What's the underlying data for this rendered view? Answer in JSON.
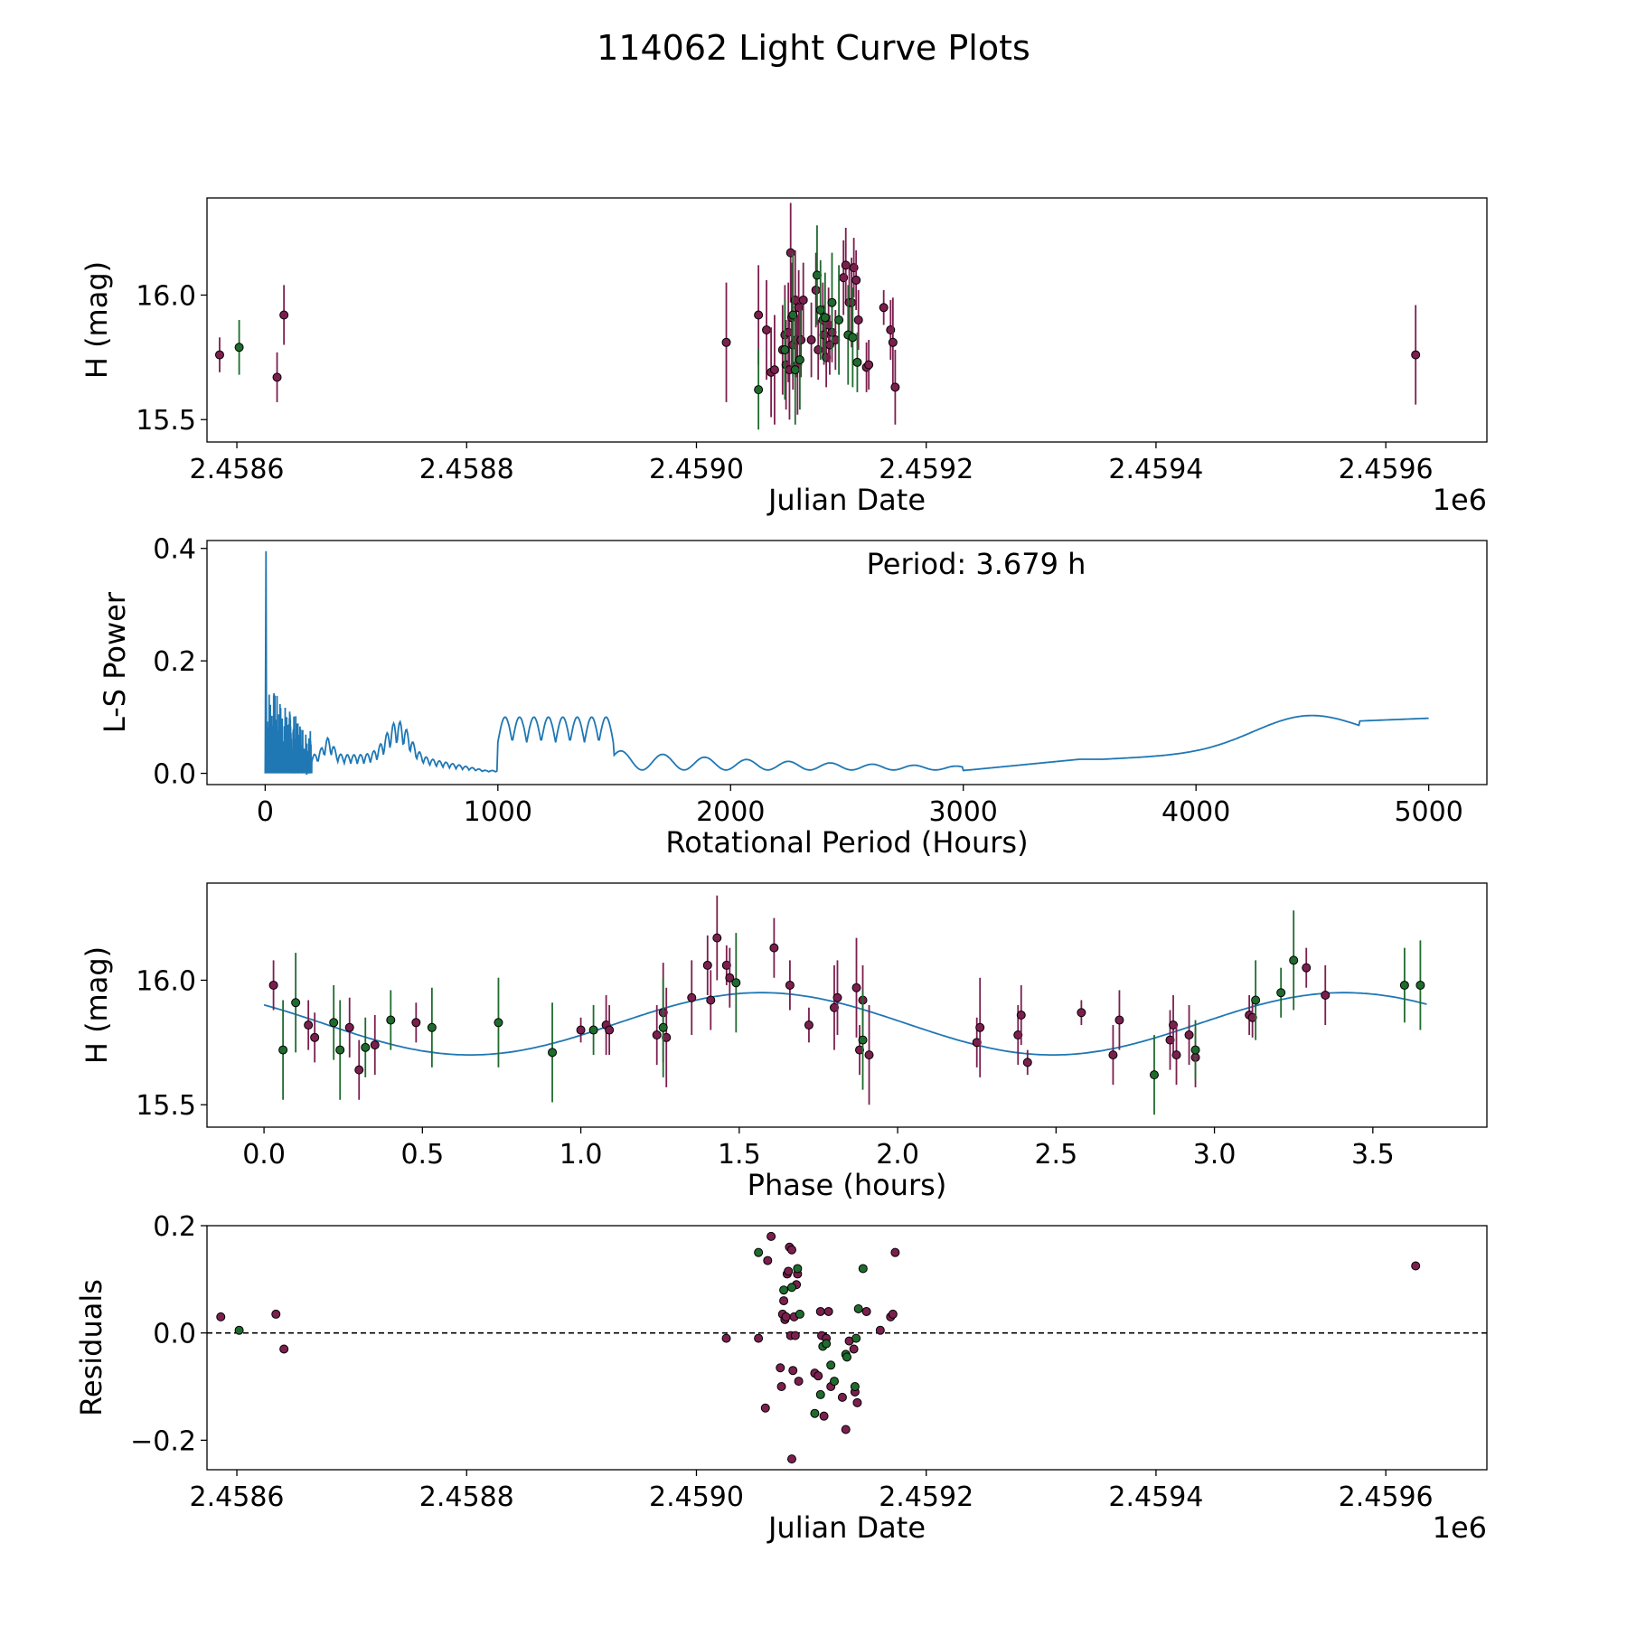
{
  "figure": {
    "title": "114062 Light Curve Plots",
    "colors": {
      "maroon": "#7b1f4e",
      "green": "#1f6b2e",
      "line": "#1f77b4",
      "marker_edge": "#000000",
      "frame": "#000000"
    }
  },
  "chart_data": [
    {
      "id": "lightcurve",
      "type": "scatter",
      "xlabel": "Julian Date",
      "ylabel": "H (mag)",
      "xlim": [
        2458574,
        2459688
      ],
      "ylim": [
        15.41,
        16.39
      ],
      "xticks": [
        2458600,
        2458800,
        2459000,
        2459200,
        2459400,
        2459600
      ],
      "xtick_labels": [
        "2.4586",
        "2.4588",
        "2.4590",
        "2.4592",
        "2.4594",
        "2.4596"
      ],
      "x_offset_label": "1e6",
      "yticks": [
        15.5,
        16.0
      ],
      "ytick_labels": [
        "15.5",
        "16.0"
      ],
      "series": [
        {
          "name": "maroon",
          "color": "#7b1f4e",
          "points": [
            [
              2458585,
              15.76,
              0.07
            ],
            [
              2458635,
              15.67,
              0.1
            ],
            [
              2458641,
              15.92,
              0.12
            ],
            [
              2459026,
              15.81,
              0.24
            ],
            [
              2459054,
              15.92,
              0.2
            ],
            [
              2459061,
              15.86,
              0.2
            ],
            [
              2459065,
              15.69,
              0.18
            ],
            [
              2459068,
              15.7,
              0.22
            ],
            [
              2459075,
              15.78,
              0.18
            ],
            [
              2459077,
              15.84,
              0.2
            ],
            [
              2459078,
              15.72,
              0.18
            ],
            [
              2459080,
              15.85,
              0.2
            ],
            [
              2459081,
              15.7,
              0.2
            ],
            [
              2459082,
              16.17,
              0.2
            ],
            [
              2459083,
              15.91,
              0.22
            ],
            [
              2459084,
              15.8,
              0.18
            ],
            [
              2459086,
              15.98,
              0.2
            ],
            [
              2459087,
              15.82,
              0.15
            ],
            [
              2459088,
              15.72,
              0.2
            ],
            [
              2459089,
              15.95,
              0.15
            ],
            [
              2459091,
              15.82,
              0.15
            ],
            [
              2459093,
              15.98,
              0.15
            ],
            [
              2459100,
              15.82,
              0.15
            ],
            [
              2459104,
              16.02,
              0.15
            ],
            [
              2459106,
              15.78,
              0.12
            ],
            [
              2459110,
              15.9,
              0.15
            ],
            [
              2459111,
              15.84,
              0.12
            ],
            [
              2459113,
              15.75,
              0.12
            ],
            [
              2459115,
              15.88,
              0.15
            ],
            [
              2459116,
              15.8,
              0.12
            ],
            [
              2459118,
              15.85,
              0.12
            ],
            [
              2459121,
              15.82,
              0.12
            ],
            [
              2459128,
              16.07,
              0.15
            ],
            [
              2459130,
              16.12,
              0.15
            ],
            [
              2459133,
              15.97,
              0.15
            ],
            [
              2459135,
              15.97,
              0.18
            ],
            [
              2459137,
              16.11,
              0.12
            ],
            [
              2459139,
              16.06,
              0.12
            ],
            [
              2459141,
              15.9,
              0.12
            ],
            [
              2459148,
              15.71,
              0.1
            ],
            [
              2459150,
              15.72,
              0.1
            ],
            [
              2459163,
              15.95,
              0.07
            ],
            [
              2459169,
              15.86,
              0.12
            ],
            [
              2459171,
              15.81,
              0.18
            ],
            [
              2459173,
              15.63,
              0.15
            ],
            [
              2459626,
              15.76,
              0.2
            ]
          ]
        },
        {
          "name": "green",
          "color": "#1f6b2e",
          "points": [
            [
              2458602,
              15.79,
              0.11
            ],
            [
              2459054,
              15.62,
              0.16
            ],
            [
              2459077,
              15.78,
              0.2
            ],
            [
              2459084,
              15.92,
              0.25
            ],
            [
              2459086,
              15.7,
              0.22
            ],
            [
              2459090,
              15.74,
              0.2
            ],
            [
              2459105,
              16.08,
              0.2
            ],
            [
              2459108,
              15.94,
              0.2
            ],
            [
              2459112,
              15.91,
              0.18
            ],
            [
              2459118,
              15.97,
              0.2
            ],
            [
              2459124,
              15.9,
              0.22
            ],
            [
              2459132,
              15.84,
              0.2
            ],
            [
              2459136,
              15.83,
              0.2
            ],
            [
              2459140,
              15.73,
              0.12
            ]
          ]
        }
      ]
    },
    {
      "id": "periodogram",
      "type": "line",
      "xlabel": "Rotational Period (Hours)",
      "ylabel": "L-S Power",
      "xlim": [
        -250,
        5250
      ],
      "ylim": [
        -0.02,
        0.414
      ],
      "xticks": [
        0,
        1000,
        2000,
        3000,
        4000,
        5000
      ],
      "xtick_labels": [
        "0",
        "1000",
        "2000",
        "3000",
        "4000",
        "5000"
      ],
      "yticks": [
        0.0,
        0.2,
        0.4
      ],
      "ytick_labels": [
        "0.0",
        "0.2",
        "0.4"
      ],
      "annotation": "Period: 3.679 h",
      "color": "#1f77b4",
      "peak": {
        "x": 3.679,
        "y": 0.395
      }
    },
    {
      "id": "phased",
      "type": "scatter",
      "xlabel": "Phase (hours)",
      "ylabel": "H (mag)",
      "xlim": [
        -0.18,
        3.86
      ],
      "ylim": [
        15.41,
        16.39
      ],
      "xticks": [
        0.0,
        0.5,
        1.0,
        1.5,
        2.0,
        2.5,
        3.0,
        3.5
      ],
      "xtick_labels": [
        "0.0",
        "0.5",
        "1.0",
        "1.5",
        "2.0",
        "2.5",
        "3.0",
        "3.5"
      ],
      "yticks": [
        15.5,
        16.0
      ],
      "ytick_labels": [
        "15.5",
        "16.0"
      ],
      "fit": {
        "period": 3.679,
        "mean": 15.825,
        "amplitude": 0.125,
        "phase_of_max": 1.57,
        "color": "#1f77b4"
      },
      "series": [
        {
          "name": "maroon",
          "color": "#7b1f4e",
          "points": [
            [
              0.03,
              15.98,
              0.1
            ],
            [
              0.14,
              15.82,
              0.1
            ],
            [
              0.16,
              15.77,
              0.1
            ],
            [
              0.27,
              15.81,
              0.12
            ],
            [
              0.3,
              15.64,
              0.12
            ],
            [
              0.35,
              15.74,
              0.12
            ],
            [
              0.48,
              15.83,
              0.08
            ],
            [
              1.0,
              15.8,
              0.05
            ],
            [
              1.08,
              15.82,
              0.12
            ],
            [
              1.09,
              15.8,
              0.1
            ],
            [
              1.24,
              15.78,
              0.12
            ],
            [
              1.26,
              15.87,
              0.2
            ],
            [
              1.27,
              15.77,
              0.2
            ],
            [
              1.35,
              15.93,
              0.15
            ],
            [
              1.4,
              16.06,
              0.12
            ],
            [
              1.41,
              15.92,
              0.12
            ],
            [
              1.43,
              16.17,
              0.17
            ],
            [
              1.46,
              16.06,
              0.08
            ],
            [
              1.47,
              16.01,
              0.12
            ],
            [
              1.61,
              16.13,
              0.12
            ],
            [
              1.66,
              15.98,
              0.1
            ],
            [
              1.72,
              15.82,
              0.07
            ],
            [
              1.8,
              15.89,
              0.17
            ],
            [
              1.81,
              15.93,
              0.15
            ],
            [
              1.87,
              15.97,
              0.2
            ],
            [
              1.88,
              15.72,
              0.1
            ],
            [
              1.89,
              15.92,
              0.14
            ],
            [
              1.91,
              15.7,
              0.2
            ],
            [
              2.25,
              15.75,
              0.1
            ],
            [
              2.26,
              15.81,
              0.2
            ],
            [
              2.38,
              15.78,
              0.12
            ],
            [
              2.39,
              15.86,
              0.12
            ],
            [
              2.41,
              15.67,
              0.05
            ],
            [
              2.58,
              15.87,
              0.05
            ],
            [
              2.68,
              15.7,
              0.12
            ],
            [
              2.7,
              15.84,
              0.12
            ],
            [
              2.86,
              15.76,
              0.12
            ],
            [
              2.87,
              15.82,
              0.12
            ],
            [
              2.88,
              15.7,
              0.12
            ],
            [
              2.92,
              15.78,
              0.12
            ],
            [
              2.94,
              15.69,
              0.12
            ],
            [
              3.11,
              15.86,
              0.08
            ],
            [
              3.12,
              15.85,
              0.08
            ],
            [
              3.29,
              16.05,
              0.08
            ],
            [
              3.35,
              15.94,
              0.12
            ]
          ]
        },
        {
          "name": "green",
          "color": "#1f6b2e",
          "points": [
            [
              0.06,
              15.72,
              0.2
            ],
            [
              0.1,
              15.91,
              0.2
            ],
            [
              0.22,
              15.83,
              0.15
            ],
            [
              0.24,
              15.72,
              0.2
            ],
            [
              0.32,
              15.73,
              0.12
            ],
            [
              0.4,
              15.84,
              0.12
            ],
            [
              0.53,
              15.81,
              0.16
            ],
            [
              0.74,
              15.83,
              0.18
            ],
            [
              0.91,
              15.71,
              0.2
            ],
            [
              1.04,
              15.8,
              0.1
            ],
            [
              1.26,
              15.81,
              0.2
            ],
            [
              1.49,
              15.99,
              0.2
            ],
            [
              1.89,
              15.76,
              0.2
            ],
            [
              2.81,
              15.62,
              0.16
            ],
            [
              2.94,
              15.72,
              0.12
            ],
            [
              3.13,
              15.92,
              0.16
            ],
            [
              3.21,
              15.95,
              0.1
            ],
            [
              3.25,
              16.08,
              0.2
            ],
            [
              3.6,
              15.98,
              0.15
            ],
            [
              3.65,
              15.98,
              0.18
            ]
          ]
        }
      ]
    },
    {
      "id": "residuals",
      "type": "scatter",
      "xlabel": "Julian Date",
      "ylabel": "Residuals",
      "xlim": [
        2458574,
        2459688
      ],
      "ylim": [
        -0.255,
        0.2
      ],
      "xticks": [
        2458600,
        2458800,
        2459000,
        2459200,
        2459400,
        2459600
      ],
      "xtick_labels": [
        "2.4586",
        "2.4588",
        "2.4590",
        "2.4592",
        "2.4594",
        "2.4596"
      ],
      "x_offset_label": "1e6",
      "yticks": [
        -0.2,
        0.0,
        0.2
      ],
      "ytick_labels": [
        "−0.2",
        "0.0",
        "0.2"
      ],
      "zero_line": 0.0,
      "series": [
        {
          "name": "maroon",
          "color": "#7b1f4e",
          "points": [
            [
              2458586,
              0.03
            ],
            [
              2458634,
              0.035
            ],
            [
              2458641,
              -0.03
            ],
            [
              2459026,
              -0.01
            ],
            [
              2459054,
              -0.01
            ],
            [
              2459060,
              -0.14
            ],
            [
              2459062,
              0.135
            ],
            [
              2459065,
              0.18
            ],
            [
              2459073,
              -0.065
            ],
            [
              2459074,
              -0.1
            ],
            [
              2459075,
              0.035
            ],
            [
              2459076,
              0.06
            ],
            [
              2459077,
              0.025
            ],
            [
              2459078,
              0.03
            ],
            [
              2459079,
              0.11
            ],
            [
              2459080,
              0.115
            ],
            [
              2459081,
              0.16
            ],
            [
              2459082,
              -0.005
            ],
            [
              2459083,
              0.155
            ],
            [
              2459083,
              -0.235
            ],
            [
              2459084,
              -0.07
            ],
            [
              2459085,
              0.03
            ],
            [
              2459086,
              -0.005
            ],
            [
              2459087,
              0.09
            ],
            [
              2459088,
              0.11
            ],
            [
              2459089,
              -0.09
            ],
            [
              2459103,
              -0.075
            ],
            [
              2459106,
              -0.08
            ],
            [
              2459108,
              0.04
            ],
            [
              2459109,
              -0.005
            ],
            [
              2459111,
              -0.155
            ],
            [
              2459113,
              -0.01
            ],
            [
              2459115,
              0.04
            ],
            [
              2459117,
              -0.1
            ],
            [
              2459127,
              -0.12
            ],
            [
              2459130,
              -0.18
            ],
            [
              2459133,
              -0.015
            ],
            [
              2459137,
              -0.03
            ],
            [
              2459138,
              -0.11
            ],
            [
              2459140,
              -0.13
            ],
            [
              2459148,
              0.04
            ],
            [
              2459160,
              0.005
            ],
            [
              2459169,
              0.03
            ],
            [
              2459171,
              0.035
            ],
            [
              2459173,
              0.15
            ],
            [
              2459626,
              0.125
            ]
          ]
        },
        {
          "name": "green",
          "color": "#1f6b2e",
          "points": [
            [
              2458602,
              0.005
            ],
            [
              2459054,
              0.15
            ],
            [
              2459076,
              0.08
            ],
            [
              2459083,
              0.085
            ],
            [
              2459088,
              0.12
            ],
            [
              2459090,
              0.035
            ],
            [
              2459103,
              -0.15
            ],
            [
              2459108,
              -0.115
            ],
            [
              2459110,
              -0.025
            ],
            [
              2459113,
              -0.02
            ],
            [
              2459117,
              -0.06
            ],
            [
              2459120,
              -0.09
            ],
            [
              2459130,
              -0.04
            ],
            [
              2459131,
              -0.045
            ],
            [
              2459138,
              -0.1
            ],
            [
              2459139,
              -0.01
            ],
            [
              2459141,
              0.045
            ],
            [
              2459145,
              0.12
            ]
          ]
        }
      ]
    }
  ]
}
